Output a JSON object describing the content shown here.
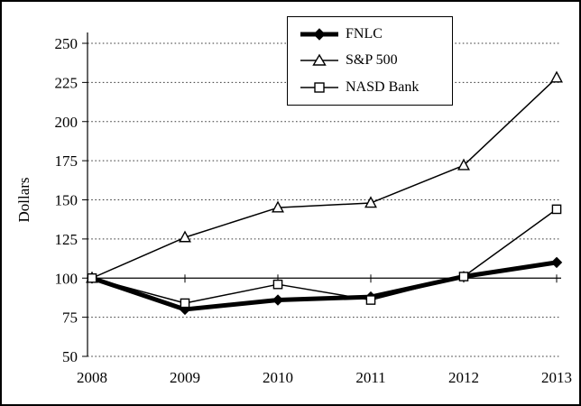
{
  "chart_data": {
    "type": "line",
    "title": "",
    "xlabel": "",
    "ylabel": "Dollars",
    "categories": [
      "2008",
      "2009",
      "2010",
      "2011",
      "2012",
      "2013"
    ],
    "series": [
      {
        "name": "FNLC",
        "values": [
          100,
          80,
          86,
          88,
          101,
          110
        ],
        "marker": "diamond",
        "marker_fill": "#000000",
        "line_width": 5
      },
      {
        "name": "S&P 500",
        "values": [
          100,
          126,
          145,
          148,
          172,
          228
        ],
        "marker": "triangle",
        "marker_fill": "#ffffff",
        "line_width": 1.5
      },
      {
        "name": "NASD Bank",
        "values": [
          100,
          84,
          96,
          86,
          101,
          144
        ],
        "marker": "square",
        "marker_fill": "#ffffff",
        "line_width": 1.5
      }
    ],
    "ylim": [
      50,
      250
    ],
    "y_ticks": [
      50,
      75,
      100,
      125,
      150,
      175,
      200,
      225,
      250
    ],
    "axis_cross": 100,
    "grid": "dashed-horizontal",
    "legend_position": "top-center",
    "line_color": "#000000"
  }
}
